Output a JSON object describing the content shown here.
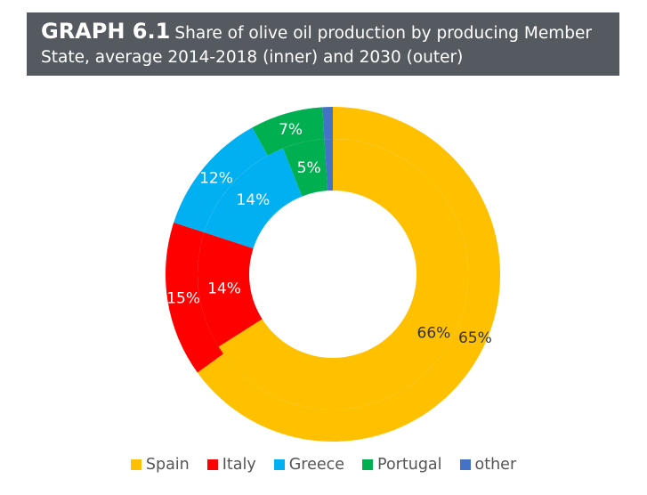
{
  "header": {
    "graph_id": "GRAPH 6.1",
    "title": "Share of olive oil production by producing Member State, average 2014-2018 (inner) and 2030 (outer)"
  },
  "chart_data": {
    "type": "pie",
    "variant": "nested-donut",
    "title": "GRAPH 6.1 Share of olive oil production by producing Member State, average 2014-2018 (inner) and 2030 (outer)",
    "categories": [
      "Spain",
      "Italy",
      "Greece",
      "Portugal",
      "other"
    ],
    "colors": [
      "#ffc000",
      "#ff0000",
      "#00b0f0",
      "#00b050",
      "#4472c4"
    ],
    "series": [
      {
        "ring": "inner",
        "values": [
          66,
          14,
          14,
          5,
          1
        ],
        "labels": [
          "66%",
          "14%",
          "14%",
          "5%",
          ""
        ]
      },
      {
        "ring": "outer",
        "values": [
          65,
          15,
          12,
          7,
          1
        ],
        "labels": [
          "65%",
          "15%",
          "12%",
          "7%",
          ""
        ]
      }
    ],
    "legend_position": "bottom"
  }
}
